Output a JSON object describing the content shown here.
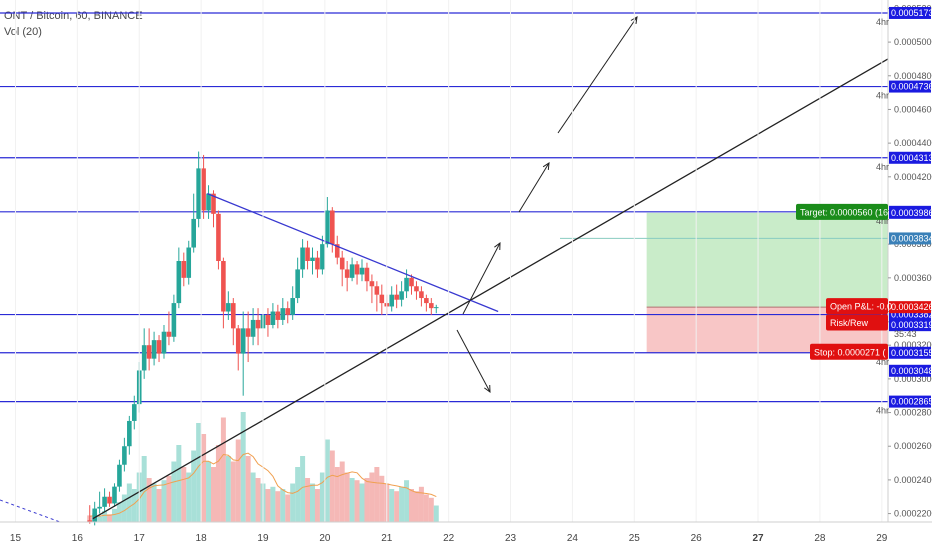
{
  "header": {
    "title": "ONT / Bitcoin, 60, BINANCE",
    "volume_label": "Vol (20)"
  },
  "colors": {
    "up": "#26a69a",
    "down": "#ef5350",
    "hline": "#2a2ad6",
    "badge": "#1a1ae0",
    "target_fill": "#c9ecc9",
    "stop_fill": "#f8c6c6",
    "target_badge": "#1a8c1a",
    "stop_badge": "#e01010",
    "ma": "#f0a050"
  },
  "price_axis": {
    "ticks": [
      "0.0005200",
      "0.0005000",
      "0.0004800",
      "0.0004600",
      "0.0004400",
      "0.0004200",
      "0.0004000",
      "0.0003800",
      "0.0003600",
      "0.0003400",
      "0.0003200",
      "0.0003000",
      "0.0002800",
      "0.0002600",
      "0.0002400",
      "0.0002200"
    ],
    "hr_label": "4hr",
    "hr_levels": [
      "0.0005173",
      "0.0004736",
      "0.0004313",
      "0.0003992",
      "0.0003382",
      "0.0003155",
      "0.0002865"
    ]
  },
  "h_lines": [
    {
      "price": "0.0005173",
      "value": 0.0005173
    },
    {
      "price": "0.0004736",
      "value": 0.0004736
    },
    {
      "price": "0.0004313",
      "value": 0.0004313
    },
    {
      "price": "0.0003992",
      "value": 0.0003992
    },
    {
      "price": "0.0003382",
      "value": 0.0003382
    },
    {
      "price": "0.0003155",
      "value": 0.0003155
    },
    {
      "price": "0.0002865",
      "value": 0.0002865
    }
  ],
  "extra_badges": [
    {
      "price": "0.0003986",
      "value": 0.0003986,
      "style": "blue"
    },
    {
      "price": "0.0003834",
      "value": 0.0003834,
      "style": "teal"
    },
    {
      "price": "0.0003426",
      "value": 0.0003426,
      "style": "red"
    },
    {
      "price": "0.0003319",
      "value": 0.0003319,
      "style": "blue"
    },
    {
      "price": "0.0003048",
      "value": 0.0003048,
      "style": "blue"
    }
  ],
  "countdown": "35:43",
  "position_labels": {
    "target": "Target: 0.0000560 (16",
    "open_pl": "Open P&L: -0.0",
    "risk_reward": "Risk/Rew",
    "stop": "Stop: 0.0000271 ("
  },
  "x_axis": {
    "labels": [
      "15",
      "16",
      "17",
      "18",
      "19",
      "20",
      "21",
      "22",
      "23",
      "24",
      "25",
      "26",
      "27",
      "28",
      "29"
    ],
    "highlight": "27"
  },
  "chart_data": {
    "type": "candlestick",
    "symbol": "ONT / Bitcoin",
    "timeframe": "60",
    "exchange": "BINANCE",
    "indicator": "Vol (20)",
    "ylim": [
      0.000215,
      0.000525
    ],
    "x_range": [
      14.75,
      29.1
    ],
    "trend_lines": [
      {
        "from": [
          16.25,
          0.000217
        ],
        "to": [
          29.1,
          0.00049
        ]
      },
      {
        "from": [
          18.1,
          0.00041
        ],
        "to": [
          22.8,
          0.00034
        ]
      }
    ],
    "position": {
      "entry": 0.0003426,
      "target": 0.0003986,
      "stop": 0.0003155,
      "start_day": 25.2,
      "end_day": 29.1
    },
    "candles": [
      [
        16.2,
        0.000216,
        0.000215,
        0.000225,
        0.000214
      ],
      [
        16.28,
        0.000215,
        0.000223,
        0.000227,
        0.000213
      ],
      [
        16.36,
        0.000223,
        0.000224,
        0.000233,
        0.00022
      ],
      [
        16.44,
        0.000224,
        0.00023,
        0.000235,
        0.000221
      ],
      [
        16.52,
        0.00023,
        0.000226,
        0.000233,
        0.000224
      ],
      [
        16.6,
        0.000226,
        0.000236,
        0.000238,
        0.000224
      ],
      [
        16.68,
        0.000236,
        0.000249,
        0.000252,
        0.000233
      ],
      [
        16.76,
        0.000249,
        0.00026,
        0.000265,
        0.000245
      ],
      [
        16.84,
        0.00026,
        0.000275,
        0.000278,
        0.000255
      ],
      [
        16.92,
        0.000275,
        0.000285,
        0.00029,
        0.00027
      ],
      [
        17.0,
        0.000285,
        0.000305,
        0.00031,
        0.00028
      ],
      [
        17.08,
        0.000305,
        0.00032,
        0.00033,
        0.0003
      ],
      [
        17.16,
        0.00032,
        0.000312,
        0.00033,
        0.000305
      ],
      [
        17.24,
        0.000312,
        0.000323,
        0.000328,
        0.000308
      ],
      [
        17.32,
        0.000323,
        0.000315,
        0.000326,
        0.00031
      ],
      [
        17.4,
        0.000315,
        0.000328,
        0.000332,
        0.000312
      ],
      [
        17.48,
        0.000328,
        0.000325,
        0.00034,
        0.00032
      ],
      [
        17.56,
        0.000325,
        0.000345,
        0.00035,
        0.000322
      ],
      [
        17.64,
        0.000345,
        0.00037,
        0.000378,
        0.000342
      ],
      [
        17.72,
        0.00037,
        0.00036,
        0.000375,
        0.000355
      ],
      [
        17.8,
        0.00036,
        0.000378,
        0.000382,
        0.000356
      ],
      [
        17.88,
        0.000378,
        0.000395,
        0.00041,
        0.000375
      ],
      [
        17.96,
        0.000395,
        0.000425,
        0.000435,
        0.00039
      ],
      [
        18.04,
        0.000425,
        0.0004,
        0.000433,
        0.000395
      ],
      [
        18.12,
        0.0004,
        0.00041,
        0.000415,
        0.000395
      ],
      [
        18.2,
        0.00041,
        0.000398,
        0.000412,
        0.00039
      ],
      [
        18.28,
        0.000398,
        0.00037,
        0.0004,
        0.000365
      ],
      [
        18.36,
        0.00037,
        0.00034,
        0.000372,
        0.00033
      ],
      [
        18.44,
        0.00034,
        0.000345,
        0.000352,
        0.000335
      ],
      [
        18.52,
        0.000345,
        0.00033,
        0.000348,
        0.00032
      ],
      [
        18.6,
        0.00033,
        0.000315,
        0.000332,
        0.000305
      ],
      [
        18.68,
        0.000315,
        0.00033,
        0.00034,
        0.00029
      ],
      [
        18.76,
        0.00033,
        0.000325,
        0.00034,
        0.00031
      ],
      [
        18.84,
        0.000325,
        0.000335,
        0.000342,
        0.00032
      ],
      [
        18.92,
        0.000335,
        0.00033,
        0.000342,
        0.00032
      ],
      [
        19.0,
        0.00033,
        0.000338,
        0.000345,
        0.000328
      ],
      [
        19.08,
        0.000338,
        0.000332,
        0.000342,
        0.000325
      ],
      [
        19.16,
        0.000332,
        0.00034,
        0.000345,
        0.00033
      ],
      [
        19.24,
        0.00034,
        0.000335,
        0.000344,
        0.00033
      ],
      [
        19.32,
        0.000335,
        0.000342,
        0.000348,
        0.000332
      ],
      [
        19.4,
        0.000342,
        0.000338,
        0.000346,
        0.000333
      ],
      [
        19.48,
        0.000338,
        0.000348,
        0.000355,
        0.000335
      ],
      [
        19.56,
        0.000348,
        0.000365,
        0.000372,
        0.000345
      ],
      [
        19.64,
        0.000365,
        0.000378,
        0.000383,
        0.00036
      ],
      [
        19.72,
        0.000378,
        0.00037,
        0.000382,
        0.000365
      ],
      [
        19.8,
        0.00037,
        0.000372,
        0.000378,
        0.000362
      ],
      [
        19.88,
        0.000372,
        0.000365,
        0.000376,
        0.00036
      ],
      [
        19.96,
        0.000365,
        0.00038,
        0.000385,
        0.000362
      ],
      [
        20.04,
        0.00038,
        0.0004,
        0.000408,
        0.000378
      ],
      [
        20.12,
        0.0004,
        0.00038,
        0.000402,
        0.000375
      ],
      [
        20.2,
        0.00038,
        0.000372,
        0.000385,
        0.000368
      ],
      [
        20.28,
        0.000372,
        0.000365,
        0.000376,
        0.000355
      ],
      [
        20.36,
        0.000365,
        0.00036,
        0.00037,
        0.000352
      ],
      [
        20.44,
        0.00036,
        0.000368,
        0.000372,
        0.000358
      ],
      [
        20.52,
        0.000368,
        0.000362,
        0.00037,
        0.000356
      ],
      [
        20.6,
        0.000362,
        0.000366,
        0.000371,
        0.000358
      ],
      [
        20.68,
        0.000366,
        0.000358,
        0.000369,
        0.000352
      ],
      [
        20.76,
        0.000358,
        0.000355,
        0.000362,
        0.000345
      ],
      [
        20.84,
        0.000355,
        0.00035,
        0.000358,
        0.00034
      ],
      [
        20.92,
        0.00035,
        0.000345,
        0.000356,
        0.000338
      ],
      [
        21.0,
        0.000345,
        0.000343,
        0.00035,
        0.000338
      ],
      [
        21.08,
        0.000343,
        0.00035,
        0.000355,
        0.00034
      ],
      [
        21.16,
        0.00035,
        0.000347,
        0.000356,
        0.000342
      ],
      [
        21.24,
        0.000347,
        0.000352,
        0.000358,
        0.000343
      ],
      [
        21.32,
        0.000352,
        0.00036,
        0.000365,
        0.000348
      ],
      [
        21.4,
        0.00036,
        0.000355,
        0.000362,
        0.00035
      ],
      [
        21.48,
        0.000355,
        0.000352,
        0.000358,
        0.000347
      ],
      [
        21.56,
        0.000352,
        0.000348,
        0.000355,
        0.000343
      ],
      [
        21.64,
        0.000348,
        0.000345,
        0.00035,
        0.00034
      ],
      [
        21.72,
        0.000345,
        0.000342,
        0.000348,
        0.000338
      ],
      [
        21.8,
        0.000342,
        0.0003426,
        0.000344,
        0.000339
      ]
    ],
    "volumes": [
      [
        16.2,
        0.06
      ],
      [
        16.28,
        0.08
      ],
      [
        16.36,
        0.05
      ],
      [
        16.44,
        0.1
      ],
      [
        16.52,
        0.07
      ],
      [
        16.6,
        0.12
      ],
      [
        16.68,
        0.18
      ],
      [
        16.76,
        0.25
      ],
      [
        16.84,
        0.35
      ],
      [
        16.92,
        0.3
      ],
      [
        17.0,
        0.45
      ],
      [
        17.08,
        0.6
      ],
      [
        17.16,
        0.4
      ],
      [
        17.24,
        0.35
      ],
      [
        17.32,
        0.3
      ],
      [
        17.4,
        0.38
      ],
      [
        17.48,
        0.42
      ],
      [
        17.56,
        0.55
      ],
      [
        17.64,
        0.7
      ],
      [
        17.72,
        0.5
      ],
      [
        17.8,
        0.45
      ],
      [
        17.88,
        0.65
      ],
      [
        17.96,
        0.9
      ],
      [
        18.04,
        0.8
      ],
      [
        18.12,
        0.55
      ],
      [
        18.2,
        0.5
      ],
      [
        18.28,
        0.7
      ],
      [
        18.36,
        0.95
      ],
      [
        18.44,
        0.6
      ],
      [
        18.52,
        0.55
      ],
      [
        18.6,
        0.75
      ],
      [
        18.68,
        1.0
      ],
      [
        18.76,
        0.6
      ],
      [
        18.84,
        0.45
      ],
      [
        18.92,
        0.4
      ],
      [
        19.0,
        0.35
      ],
      [
        19.08,
        0.3
      ],
      [
        19.16,
        0.32
      ],
      [
        19.24,
        0.28
      ],
      [
        19.32,
        0.3
      ],
      [
        19.4,
        0.25
      ],
      [
        19.48,
        0.35
      ],
      [
        19.56,
        0.5
      ],
      [
        19.64,
        0.6
      ],
      [
        19.72,
        0.4
      ],
      [
        19.8,
        0.35
      ],
      [
        19.88,
        0.3
      ],
      [
        19.96,
        0.45
      ],
      [
        20.04,
        0.75
      ],
      [
        20.12,
        0.65
      ],
      [
        20.2,
        0.5
      ],
      [
        20.28,
        0.55
      ],
      [
        20.36,
        0.45
      ],
      [
        20.44,
        0.4
      ],
      [
        20.52,
        0.38
      ],
      [
        20.6,
        0.35
      ],
      [
        20.68,
        0.4
      ],
      [
        20.76,
        0.45
      ],
      [
        20.84,
        0.5
      ],
      [
        20.92,
        0.42
      ],
      [
        21.0,
        0.35
      ],
      [
        21.08,
        0.3
      ],
      [
        21.16,
        0.28
      ],
      [
        21.24,
        0.32
      ],
      [
        21.32,
        0.38
      ],
      [
        21.4,
        0.3
      ],
      [
        21.48,
        0.28
      ],
      [
        21.56,
        0.32
      ],
      [
        21.64,
        0.25
      ],
      [
        21.72,
        0.22
      ],
      [
        21.8,
        0.15
      ]
    ]
  }
}
